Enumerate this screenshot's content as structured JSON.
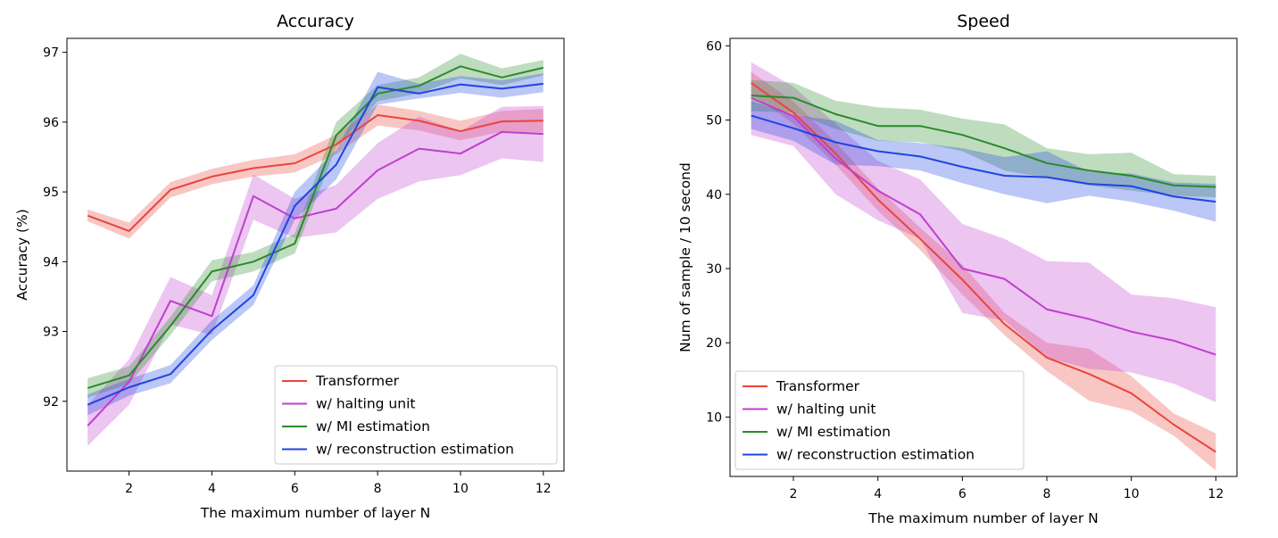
{
  "chart_data": [
    {
      "type": "line",
      "title": "Accuracy",
      "xlabel": "The maximum number of layer N",
      "ylabel": "Accuracy (%)",
      "xlim": [
        0.5,
        12.5
      ],
      "ylim": [
        91.0,
        97.2
      ],
      "xticks": [
        2,
        4,
        6,
        8,
        10,
        12
      ],
      "yticks": [
        92,
        93,
        94,
        95,
        96,
        97
      ],
      "grid": false,
      "legend_position": "bottom-right",
      "x": [
        1,
        2,
        3,
        4,
        5,
        6,
        7,
        8,
        9,
        10,
        11,
        12
      ],
      "series": [
        {
          "name": "Transformer",
          "color": "#e8453c",
          "values": [
            94.66,
            94.44,
            95.03,
            95.22,
            95.34,
            95.41,
            95.68,
            96.1,
            96.02,
            95.87,
            96.01,
            96.02
          ],
          "lower": [
            94.58,
            94.33,
            94.92,
            95.11,
            95.22,
            95.28,
            95.54,
            95.95,
            95.88,
            95.74,
            95.86,
            95.85
          ],
          "upper": [
            94.75,
            94.56,
            95.14,
            95.33,
            95.46,
            95.54,
            95.82,
            96.25,
            96.16,
            96.02,
            96.16,
            96.19
          ]
        },
        {
          "name": "w/ halting unit",
          "color": "#bf3fcf",
          "values": [
            91.65,
            92.28,
            93.44,
            93.22,
            94.94,
            94.62,
            94.76,
            95.31,
            95.62,
            95.55,
            95.86,
            95.83
          ],
          "lower": [
            91.36,
            91.95,
            93.1,
            92.95,
            94.6,
            94.34,
            94.42,
            94.9,
            95.15,
            95.24,
            95.48,
            95.43
          ],
          "upper": [
            91.95,
            92.6,
            93.78,
            93.52,
            95.25,
            94.9,
            95.1,
            95.7,
            96.08,
            95.87,
            96.22,
            96.23
          ]
        },
        {
          "name": "w/ MI estimation",
          "color": "#2a8a2a",
          "values": [
            92.19,
            92.37,
            93.08,
            93.86,
            94.0,
            94.26,
            95.81,
            96.41,
            96.52,
            96.8,
            96.64,
            96.78
          ],
          "lower": [
            92.05,
            92.25,
            92.95,
            93.72,
            93.86,
            94.12,
            95.64,
            96.3,
            96.41,
            96.63,
            96.53,
            96.67
          ],
          "upper": [
            92.33,
            92.5,
            93.21,
            94.02,
            94.14,
            94.4,
            96.0,
            96.53,
            96.64,
            96.98,
            96.77,
            96.89
          ]
        },
        {
          "name": "w/ reconstruction estimation",
          "color": "#1f45e0",
          "values": [
            91.95,
            92.2,
            92.39,
            93.02,
            93.52,
            94.8,
            95.39,
            96.5,
            96.41,
            96.54,
            96.48,
            96.55
          ],
          "lower": [
            91.8,
            92.08,
            92.26,
            92.88,
            93.38,
            94.6,
            95.18,
            96.25,
            96.34,
            96.42,
            96.35,
            96.43
          ],
          "upper": [
            92.1,
            92.32,
            92.52,
            93.16,
            93.66,
            95.0,
            95.6,
            96.72,
            96.55,
            96.66,
            96.6,
            96.7
          ]
        }
      ]
    },
    {
      "type": "line",
      "title": "Speed",
      "xlabel": "The maximum number of layer N",
      "ylabel": "Num of sample / 10 second",
      "xlim": [
        0.5,
        12.5
      ],
      "ylim": [
        2,
        61
      ],
      "xticks": [
        2,
        4,
        6,
        8,
        10,
        12
      ],
      "yticks": [
        10,
        20,
        30,
        40,
        50,
        60
      ],
      "grid": false,
      "legend_position": "bottom-left",
      "x": [
        1,
        2,
        3,
        4,
        5,
        6,
        7,
        8,
        9,
        10,
        11,
        12
      ],
      "series": [
        {
          "name": "Transformer",
          "color": "#e8453c",
          "values": [
            55.0,
            51.0,
            45.5,
            39.3,
            34.0,
            28.5,
            22.5,
            18.0,
            15.8,
            13.2,
            9.0,
            5.3
          ],
          "lower": [
            53.5,
            49.5,
            44.0,
            37.8,
            32.5,
            26.5,
            21.0,
            16.2,
            12.2,
            10.8,
            7.5,
            2.8
          ],
          "upper": [
            56.5,
            52.5,
            47.0,
            40.8,
            35.5,
            30.5,
            24.0,
            20.0,
            19.2,
            15.5,
            10.5,
            7.8
          ]
        },
        {
          "name": "w/ halting unit",
          "color": "#bf3fcf",
          "values": [
            53.0,
            50.5,
            44.8,
            40.5,
            37.3,
            30.0,
            28.6,
            24.5,
            23.2,
            21.5,
            20.3,
            18.4
          ],
          "lower": [
            48.0,
            46.5,
            40.0,
            36.5,
            34.0,
            24.0,
            23.0,
            18.0,
            16.5,
            16.0,
            14.5,
            12.0
          ],
          "upper": [
            57.8,
            54.5,
            49.5,
            44.5,
            42.0,
            36.0,
            34.0,
            31.0,
            30.8,
            26.5,
            26.0,
            24.8
          ]
        },
        {
          "name": "w/ MI estimation",
          "color": "#2a8a2a",
          "values": [
            53.3,
            53.0,
            50.8,
            49.2,
            49.2,
            48.0,
            46.2,
            44.2,
            43.2,
            42.5,
            41.2,
            41.0
          ],
          "lower": [
            51.2,
            51.0,
            48.8,
            47.2,
            47.0,
            45.8,
            43.2,
            42.2,
            41.2,
            40.5,
            39.8,
            39.6
          ],
          "upper": [
            55.4,
            55.0,
            52.6,
            51.7,
            51.4,
            50.2,
            49.4,
            46.2,
            45.4,
            45.6,
            42.7,
            42.5
          ]
        },
        {
          "name": "w/ reconstruction estimation",
          "color": "#1f45e0",
          "values": [
            50.6,
            48.9,
            47.0,
            45.8,
            45.1,
            43.7,
            42.5,
            42.3,
            41.4,
            41.1,
            39.7,
            39.0
          ],
          "lower": [
            48.8,
            47.2,
            44.0,
            43.8,
            43.2,
            41.5,
            40.0,
            38.8,
            39.8,
            39.0,
            37.8,
            36.3
          ],
          "upper": [
            52.6,
            50.7,
            49.9,
            47.3,
            46.9,
            46.2,
            45.0,
            45.8,
            43.0,
            42.8,
            41.6,
            41.4
          ]
        }
      ]
    }
  ]
}
